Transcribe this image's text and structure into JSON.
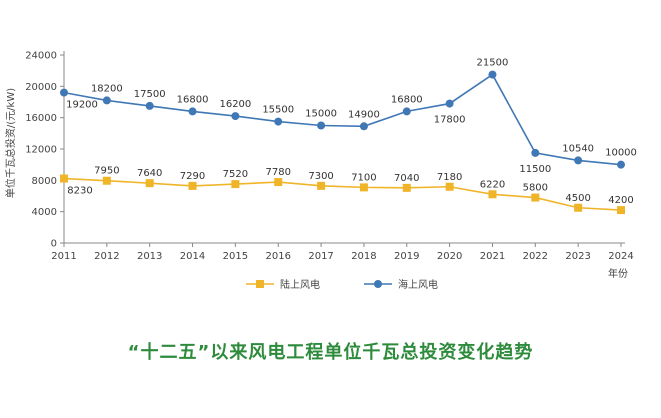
{
  "chart_data": {
    "type": "line",
    "title": "“十二五”以来风电工程单位千瓦总投资变化趋势",
    "ylabel": "单位千瓦总投资/(元/kW)",
    "xlabel": "年份",
    "ylim": [
      0,
      24000
    ],
    "yticks": [
      0,
      4000,
      8000,
      12000,
      16000,
      20000,
      24000
    ],
    "categories": [
      "2011",
      "2012",
      "2013",
      "2014",
      "2015",
      "2016",
      "2017",
      "2018",
      "2019",
      "2020",
      "2021",
      "2022",
      "2023",
      "2024"
    ],
    "series": [
      {
        "name": "陆上风电",
        "color": "#f0b429",
        "marker": "square",
        "values": [
          8230,
          7950,
          7640,
          7290,
          7520,
          7780,
          7300,
          7100,
          7040,
          7180,
          6220,
          5800,
          4500,
          4200
        ],
        "labels": [
          "8230",
          "7950",
          "7640",
          "7290",
          "7520",
          "7780",
          "7300",
          "7100",
          "7040",
          "7180",
          "6220",
          "5800",
          "4500",
          "4200"
        ]
      },
      {
        "name": "海上风电",
        "color": "#3f78b5",
        "marker": "circle",
        "values": [
          19200,
          18200,
          17500,
          16800,
          16200,
          15500,
          15000,
          14900,
          16800,
          17800,
          21500,
          11500,
          10540,
          10000
        ],
        "labels": [
          "19200",
          "18200",
          "17500",
          "16800",
          "16200",
          "15500",
          "15000",
          "14900",
          "16800",
          "17800",
          "21500",
          "11500",
          "10540",
          "10000"
        ]
      }
    ],
    "grid": false,
    "legend": "bottom"
  }
}
